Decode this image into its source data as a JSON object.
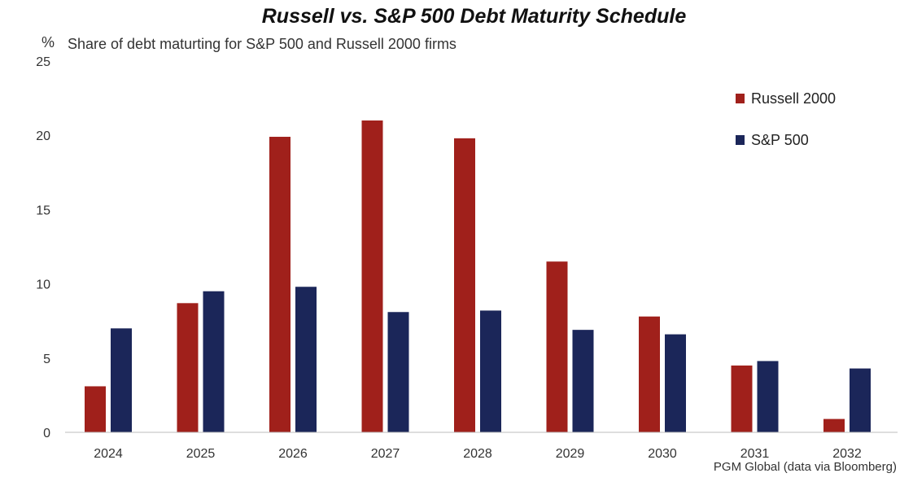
{
  "chart_data": {
    "type": "bar",
    "title": "Russell vs. S&P 500 Debt Maturity Schedule",
    "subtitle": "Share of debt maturting for S&P 500 and Russell 2000 firms",
    "ylabel": "%",
    "source": "PGM Global (data via Bloomberg)",
    "categories": [
      "2024",
      "2025",
      "2026",
      "2027",
      "2028",
      "2029",
      "2030",
      "2031",
      "2032"
    ],
    "yticks": [
      "0",
      "5",
      "10",
      "15",
      "20",
      "25"
    ],
    "ylim": [
      0,
      25
    ],
    "grid": false,
    "legend_position": "top-right",
    "series": [
      {
        "name": "Russell 2000",
        "color": "#a0201b",
        "values": [
          3.1,
          8.7,
          19.9,
          21.0,
          19.8,
          11.5,
          7.8,
          4.5,
          0.9
        ]
      },
      {
        "name": "S&P 500",
        "color": "#1b2659",
        "values": [
          7.0,
          9.5,
          9.8,
          8.1,
          8.2,
          6.9,
          6.6,
          4.8,
          4.3
        ]
      }
    ]
  }
}
